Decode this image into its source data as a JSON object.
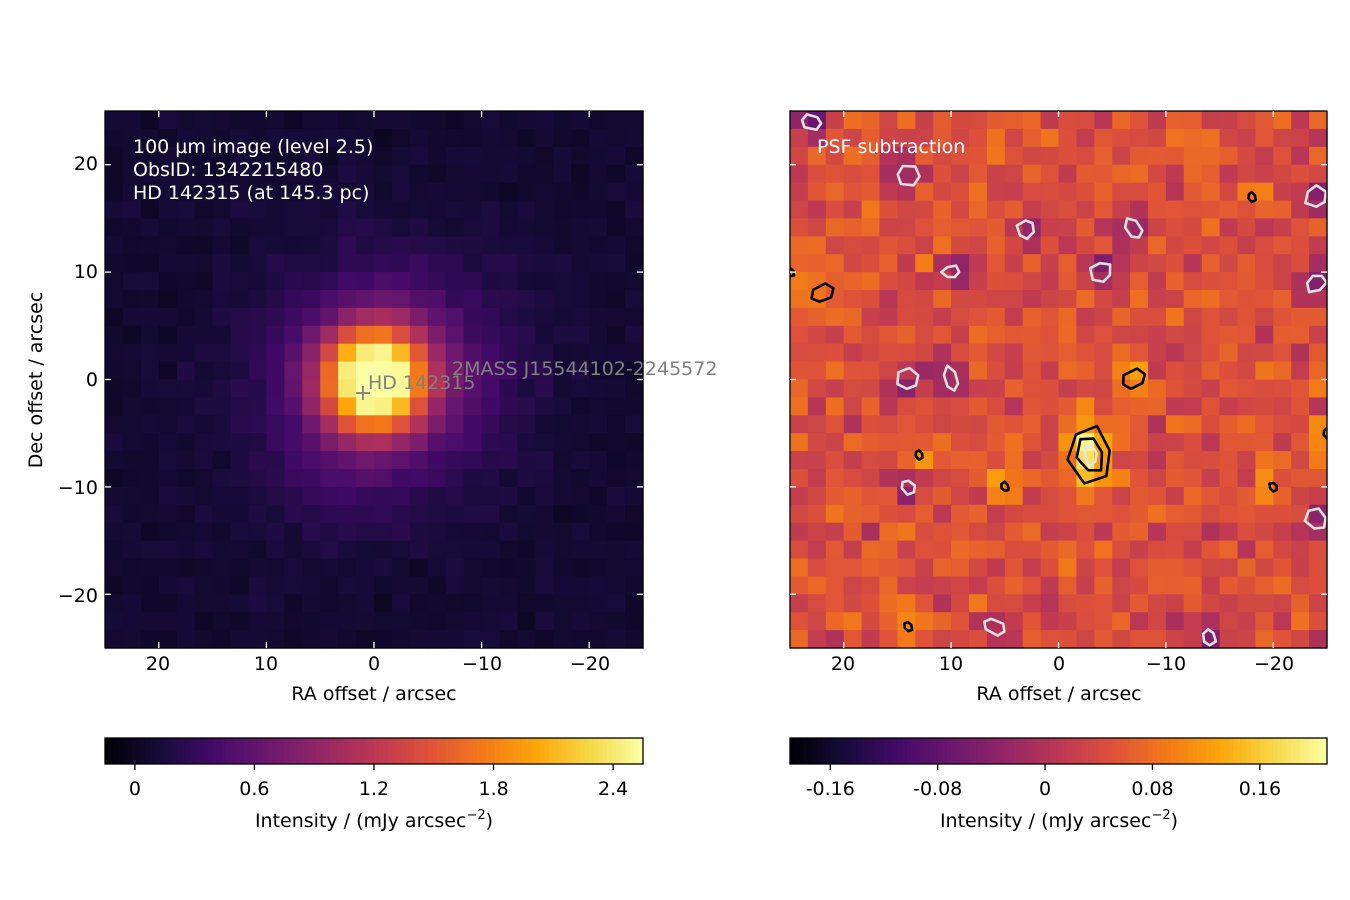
{
  "chart_data": [
    {
      "type": "heatmap",
      "grid": [
        30,
        30
      ],
      "xlabel": "RA offset / arcsec",
      "ylabel": "Dec offset / arcsec",
      "xlim": [
        25,
        -25
      ],
      "ylim": [
        -25,
        25
      ],
      "xticks": [
        20,
        10,
        0,
        -10,
        -20
      ],
      "xtick_labels": [
        "20",
        "10",
        "0",
        "−10",
        "−20"
      ],
      "yticks": [
        20,
        10,
        0,
        -10,
        -20
      ],
      "ytick_labels": [
        "20",
        "10",
        "0",
        "−10",
        "−20"
      ],
      "colormap": "inferno",
      "annotation_lines": [
        "100 µm image (level 2.5)",
        "ObsID: 1342215480",
        "HD 142315 (at 145.3 pc)"
      ],
      "markers": [
        {
          "label": "HD 142315",
          "x": 1,
          "y": -1,
          "marker": "+"
        },
        {
          "label": "2MASS J15544102-2245572",
          "x": -7,
          "y": 1
        }
      ],
      "source": {
        "x": 0,
        "y": 0,
        "peak": 2.5,
        "sigma_arcsec": 3.4
      },
      "colorbar": {
        "range": [
          -0.15,
          2.55
        ],
        "ticks": [
          0,
          0.6,
          1.2,
          1.8,
          2.4
        ],
        "tick_labels": [
          "0",
          "0.6",
          "1.2",
          "1.8",
          "2.4"
        ],
        "label": "Intensity / (mJy arcsec",
        "label_sup": "−2",
        "label_end": ")"
      }
    },
    {
      "type": "heatmap",
      "grid": [
        30,
        30
      ],
      "xlabel": "RA offset / arcsec",
      "ylabel": "",
      "xlim": [
        25,
        -25
      ],
      "ylim": [
        -25,
        25
      ],
      "xticks": [
        20,
        10,
        0,
        -10,
        -20
      ],
      "xtick_labels": [
        "20",
        "10",
        "0",
        "−10",
        "−20"
      ],
      "yticks": [
        20,
        10,
        0,
        -10,
        -20
      ],
      "colormap": "inferno",
      "annotation_lines": [
        "PSF subtraction"
      ],
      "residual_peak": {
        "x": -3,
        "y": -7,
        "value": 0.2
      },
      "positive_contours": [
        {
          "x": -3,
          "y": -7
        },
        {
          "x": -7,
          "y": 0
        },
        {
          "x": 22,
          "y": 8
        },
        {
          "x": 13,
          "y": -7
        },
        {
          "x": -20,
          "y": -10
        },
        {
          "x": 5,
          "y": -10
        },
        {
          "x": -18,
          "y": 17
        },
        {
          "x": 14,
          "y": -23
        },
        {
          "x": 25,
          "y": 10
        },
        {
          "x": -25,
          "y": -5
        }
      ],
      "negative_contours": [
        {
          "x": 10,
          "y": 10
        },
        {
          "x": 14,
          "y": 0
        },
        {
          "x": 10,
          "y": 0
        },
        {
          "x": 3,
          "y": 14
        },
        {
          "x": -7,
          "y": 14
        },
        {
          "x": 14,
          "y": 19
        },
        {
          "x": 14,
          "y": -10
        },
        {
          "x": -4,
          "y": 10
        },
        {
          "x": 6,
          "y": -23
        },
        {
          "x": -24,
          "y": 9
        },
        {
          "x": 23,
          "y": 24
        },
        {
          "x": -24,
          "y": -13
        },
        {
          "x": -14,
          "y": -24
        },
        {
          "x": -24,
          "y": 17
        }
      ],
      "colorbar": {
        "range": [
          -0.19,
          0.21
        ],
        "ticks": [
          -0.16,
          -0.08,
          0,
          0.08,
          0.16
        ],
        "tick_labels": [
          "-0.16",
          "-0.08",
          "0",
          "0.08",
          "0.16"
        ],
        "label": "Intensity / (mJy arcsec",
        "label_sup": "−2",
        "label_end": ")"
      }
    }
  ]
}
